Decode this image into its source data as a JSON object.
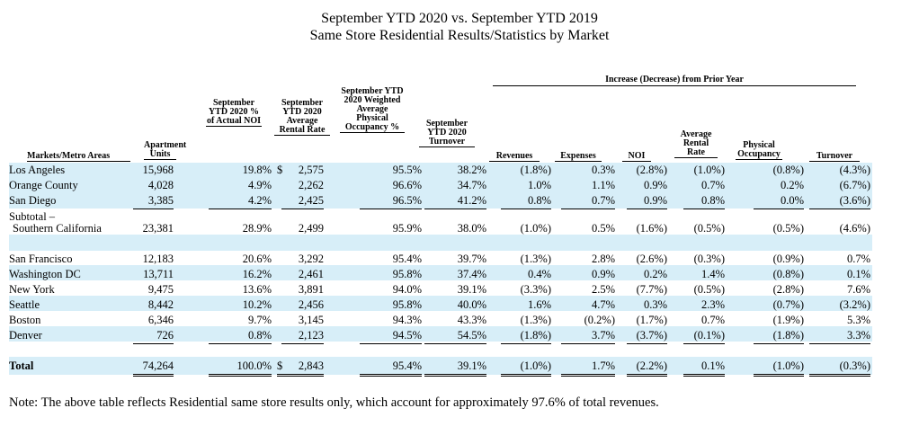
{
  "title_line1": "September YTD 2020 vs. September YTD 2019",
  "title_line2": "Same Store Residential Results/Statistics by Market",
  "prior_year_header": "Increase (Decrease) from Prior Year",
  "headers": {
    "market": "Markets/Metro Areas",
    "units": "Apartment Units",
    "noi_pct": "September YTD 2020 % of Actual NOI",
    "rent": "September YTD 2020 Average Rental Rate",
    "occ": "September YTD 2020 Weighted Average Physical Occupancy %",
    "turnover": "September YTD 2020 Turnover",
    "revenues": "Revenues",
    "expenses": "Expenses",
    "noi": "NOI",
    "avg_rate": "Average Rental Rate",
    "phys_occ": "Physical Occupancy",
    "chg_turnover": "Turnover"
  },
  "rows": [
    {
      "name": "Los Angeles",
      "units": "15,968",
      "noi_pct": "19.8%",
      "usd": "$",
      "rent": "2,575",
      "occ": "95.5%",
      "turnover": "38.2%",
      "revenues": "(1.8%)",
      "expenses": "0.3%",
      "noi": "(2.8%)",
      "avg_rate": "(1.0%)",
      "phys_occ": "(0.8%)",
      "chg_turnover": "(4.3%)"
    },
    {
      "name": "Orange County",
      "units": "4,028",
      "noi_pct": "4.9%",
      "usd": "",
      "rent": "2,262",
      "occ": "96.6%",
      "turnover": "34.7%",
      "revenues": "1.0%",
      "expenses": "1.1%",
      "noi": "0.9%",
      "avg_rate": "0.7%",
      "phys_occ": "0.2%",
      "chg_turnover": "(6.7%)"
    },
    {
      "name": "San Diego",
      "units": "3,385",
      "noi_pct": "4.2%",
      "usd": "",
      "rent": "2,425",
      "occ": "96.5%",
      "turnover": "41.2%",
      "revenues": "0.8%",
      "expenses": "0.7%",
      "noi": "0.9%",
      "avg_rate": "0.8%",
      "phys_occ": "0.0%",
      "chg_turnover": "(3.6%)"
    },
    {
      "name": "San Francisco",
      "units": "12,183",
      "noi_pct": "20.6%",
      "usd": "",
      "rent": "3,292",
      "occ": "95.4%",
      "turnover": "39.7%",
      "revenues": "(1.3%)",
      "expenses": "2.8%",
      "noi": "(2.6%)",
      "avg_rate": "(0.3%)",
      "phys_occ": "(0.9%)",
      "chg_turnover": "0.7%"
    },
    {
      "name": "Washington DC",
      "units": "13,711",
      "noi_pct": "16.2%",
      "usd": "",
      "rent": "2,461",
      "occ": "95.8%",
      "turnover": "37.4%",
      "revenues": "0.4%",
      "expenses": "0.9%",
      "noi": "0.2%",
      "avg_rate": "1.4%",
      "phys_occ": "(0.8%)",
      "chg_turnover": "0.1%"
    },
    {
      "name": "New York",
      "units": "9,475",
      "noi_pct": "13.6%",
      "usd": "",
      "rent": "3,891",
      "occ": "94.0%",
      "turnover": "39.1%",
      "revenues": "(3.3%)",
      "expenses": "2.5%",
      "noi": "(7.7%)",
      "avg_rate": "(0.5%)",
      "phys_occ": "(2.8%)",
      "chg_turnover": "7.6%"
    },
    {
      "name": "Seattle",
      "units": "8,442",
      "noi_pct": "10.2%",
      "usd": "",
      "rent": "2,456",
      "occ": "95.8%",
      "turnover": "40.0%",
      "revenues": "1.6%",
      "expenses": "4.7%",
      "noi": "0.3%",
      "avg_rate": "2.3%",
      "phys_occ": "(0.7%)",
      "chg_turnover": "(3.2%)"
    },
    {
      "name": "Boston",
      "units": "6,346",
      "noi_pct": "9.7%",
      "usd": "",
      "rent": "3,145",
      "occ": "94.3%",
      "turnover": "43.3%",
      "revenues": "(1.3%)",
      "expenses": "(0.2%)",
      "noi": "(1.7%)",
      "avg_rate": "0.7%",
      "phys_occ": "(1.9%)",
      "chg_turnover": "5.3%"
    },
    {
      "name": "Denver",
      "units": "726",
      "noi_pct": "0.8%",
      "usd": "",
      "rent": "2,123",
      "occ": "94.5%",
      "turnover": "54.5%",
      "revenues": "(1.8%)",
      "expenses": "3.7%",
      "noi": "(3.7%)",
      "avg_rate": "(0.1%)",
      "phys_occ": "(1.8%)",
      "chg_turnover": "3.3%"
    }
  ],
  "subtotal": {
    "name1": "Subtotal –",
    "name2": "Southern California",
    "units": "23,381",
    "noi_pct": "28.9%",
    "rent": "2,499",
    "occ": "95.9%",
    "turnover": "38.0%",
    "revenues": "(1.0%)",
    "expenses": "0.5%",
    "noi": "(1.6%)",
    "avg_rate": "(0.5%)",
    "phys_occ": "(0.5%)",
    "chg_turnover": "(4.6%)"
  },
  "total": {
    "name": "Total",
    "units": "74,264",
    "noi_pct": "100.0%",
    "usd": "$",
    "rent": "2,843",
    "occ": "95.4%",
    "turnover": "39.1%",
    "revenues": "(1.0%)",
    "expenses": "1.7%",
    "noi": "(2.2%)",
    "avg_rate": "0.1%",
    "phys_occ": "(1.0%)",
    "chg_turnover": "(0.3%)"
  },
  "note": "Note: The above table reflects Residential same store results only, which account for approximately 97.6% of total revenues."
}
